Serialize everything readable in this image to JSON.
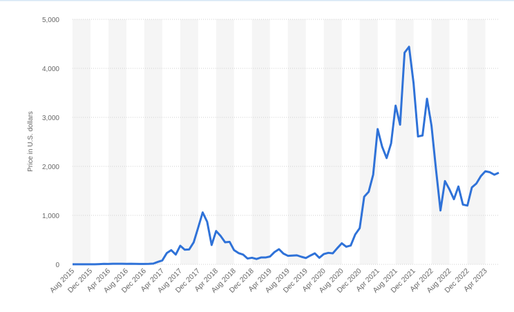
{
  "chart_data": {
    "type": "line",
    "y_label": "Price in U.S. dollars",
    "color": "#2f72d8",
    "grid": true,
    "categories": [
      "Aug 2015",
      null,
      null,
      null,
      "Dec 2015",
      null,
      null,
      null,
      "Apr 2016",
      null,
      null,
      null,
      "Aug 2016",
      null,
      null,
      null,
      "Dec 2016",
      null,
      null,
      null,
      "Apr 2017",
      null,
      null,
      null,
      "Aug 2017",
      null,
      null,
      null,
      "Dec 2017",
      null,
      null,
      null,
      "Apr 2018",
      null,
      null,
      null,
      "Aug 2018",
      null,
      null,
      null,
      "Dec 2018",
      null,
      null,
      null,
      "Apr 2019",
      null,
      null,
      null,
      "Aug 2019",
      null,
      null,
      null,
      "Dec 2019",
      null,
      null,
      null,
      "Apr 2020",
      null,
      null,
      null,
      "Aug 2020",
      null,
      null,
      null,
      "Dec 2020",
      null,
      null,
      null,
      "Apr 2021",
      null,
      null,
      null,
      "Aug 2021",
      null,
      null,
      null,
      "Dec 2021",
      null,
      null,
      null,
      "Apr 2022",
      null,
      null,
      null,
      "Aug 2022",
      null,
      null,
      null,
      "Dec 2022",
      null,
      null,
      null,
      "Apr 2023",
      null,
      null,
      null
    ],
    "values": [
      1,
      1,
      1,
      1,
      1,
      2,
      6,
      11,
      9,
      13,
      12,
      13,
      11,
      13,
      11,
      9,
      8,
      10,
      16,
      50,
      80,
      230,
      290,
      200,
      380,
      300,
      305,
      450,
      750,
      1060,
      870,
      395,
      680,
      580,
      450,
      460,
      290,
      230,
      200,
      120,
      135,
      110,
      140,
      140,
      160,
      250,
      310,
      220,
      175,
      180,
      185,
      155,
      130,
      180,
      225,
      135,
      210,
      235,
      225,
      330,
      430,
      360,
      385,
      610,
      740,
      1380,
      1480,
      1830,
      2760,
      2400,
      2170,
      2470,
      3240,
      2850,
      4320,
      4440,
      3700,
      2610,
      2630,
      3380,
      2830,
      1940,
      1100,
      1700,
      1530,
      1330,
      1590,
      1220,
      1200,
      1570,
      1650,
      1800,
      1900,
      1880,
      1830,
      1870
    ],
    "ylim": [
      0,
      5000
    ],
    "yticks": [
      0,
      {
        "value": 1000,
        "label": "1,000"
      },
      {
        "value": 2000,
        "label": "2,000"
      },
      {
        "value": 3000,
        "label": "3,000"
      },
      {
        "value": 4000,
        "label": "4,000"
      },
      {
        "value": 5000,
        "label": "5,000"
      }
    ]
  }
}
